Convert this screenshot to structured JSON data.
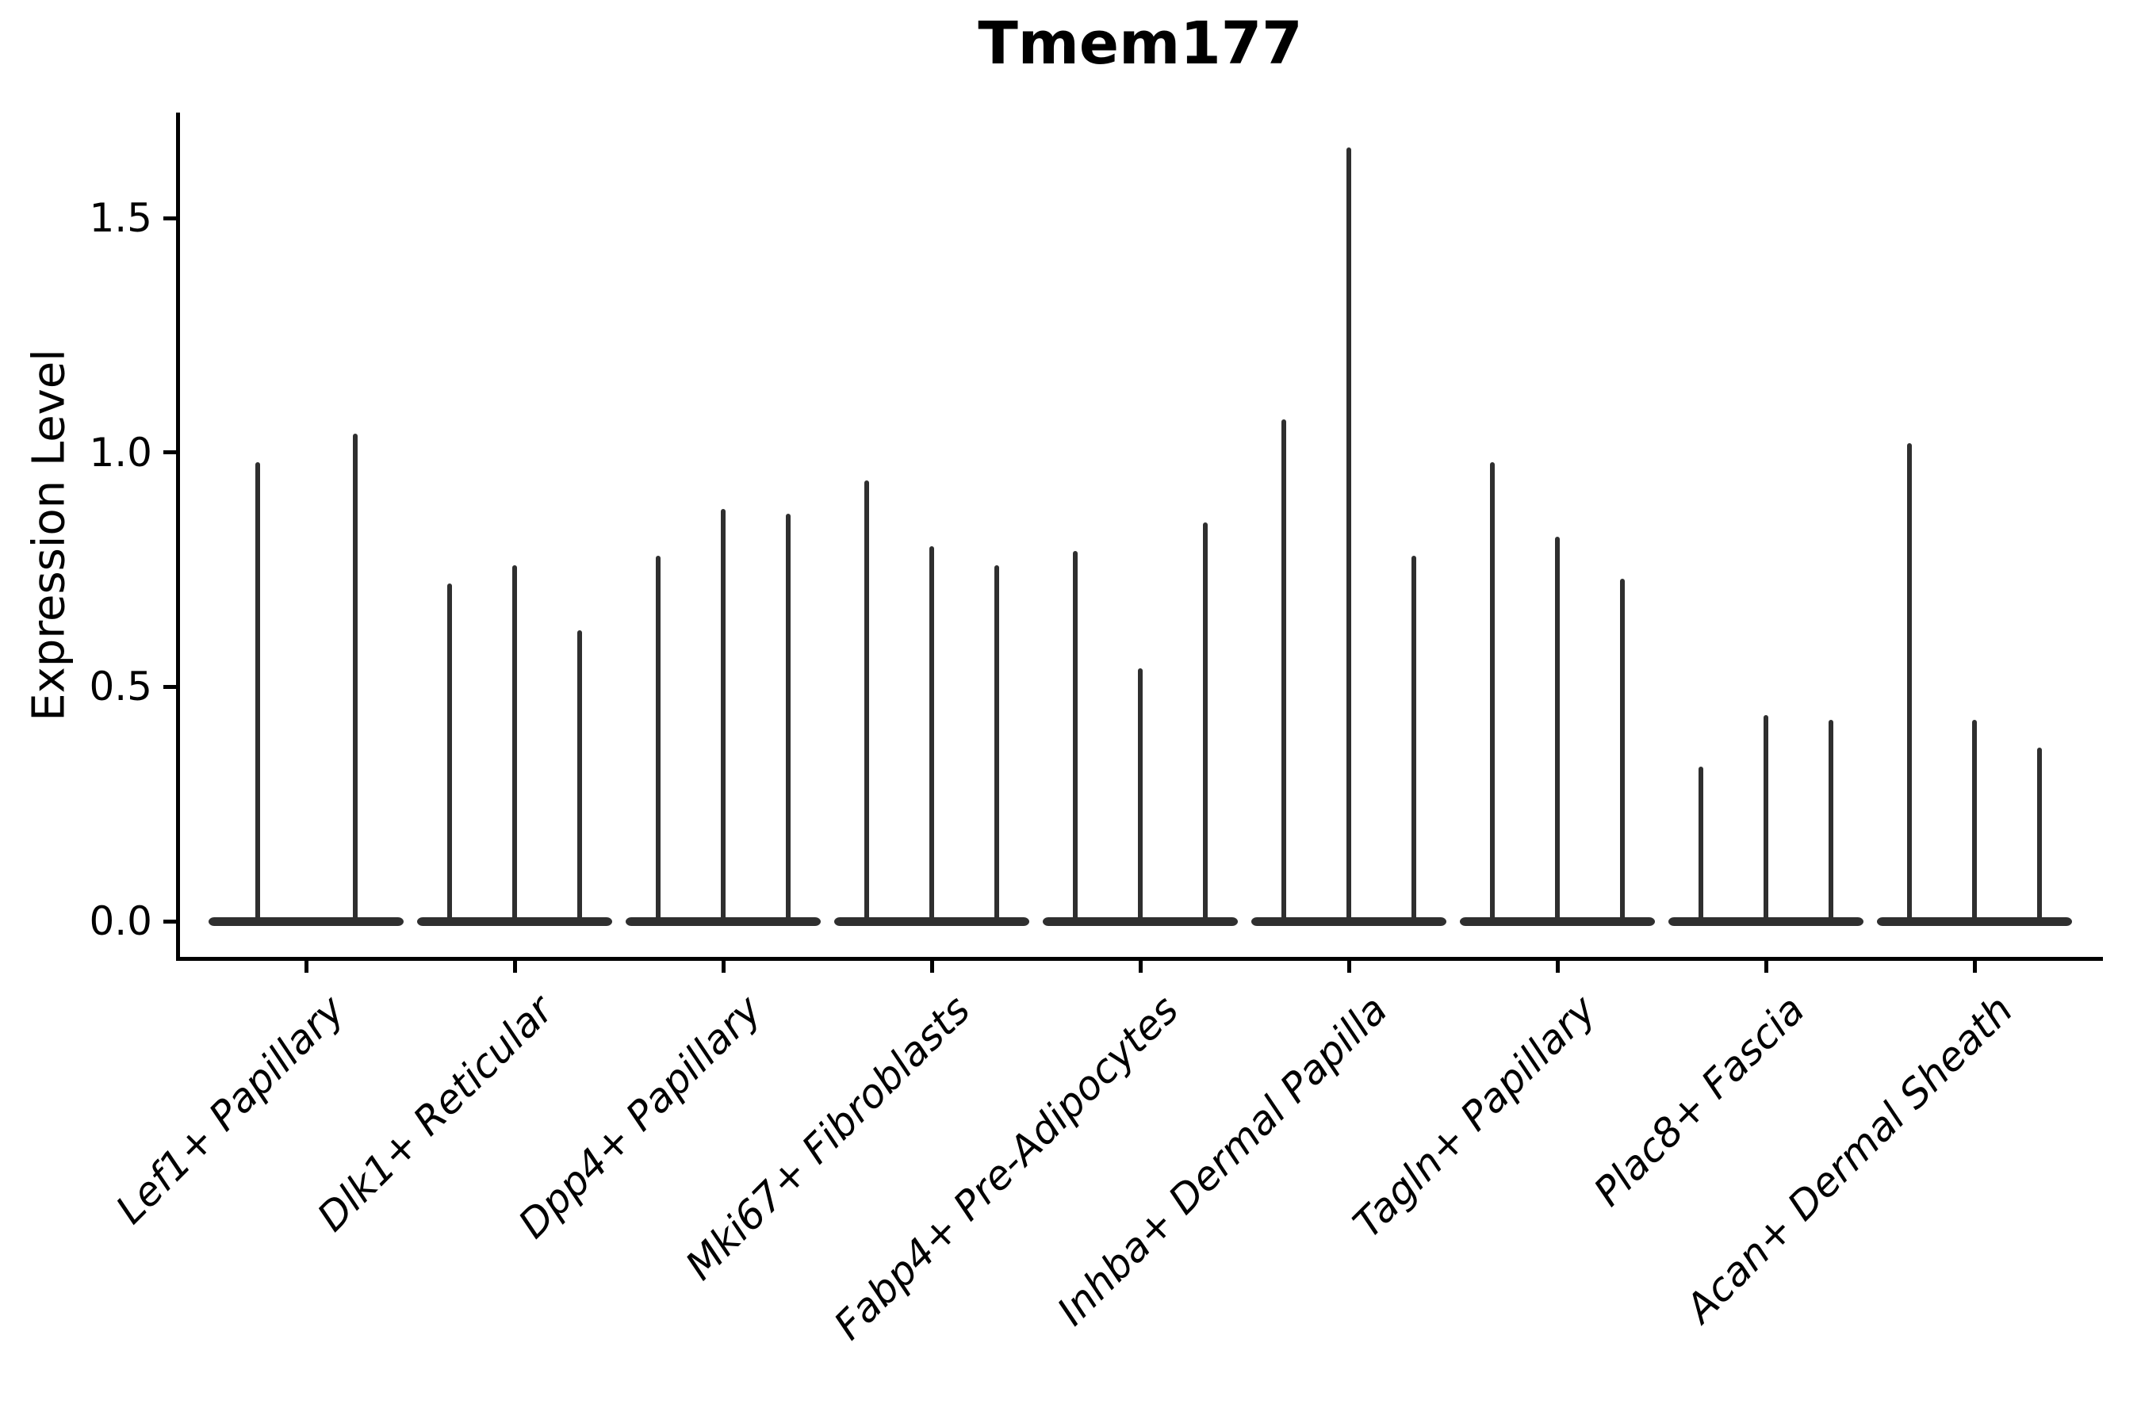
{
  "figure": {
    "title": "Tmem177",
    "ylabel": "Expression Level"
  },
  "chart_data": {
    "type": "violin",
    "title": "Tmem177",
    "xlabel": "",
    "ylabel": "Expression Level",
    "yticks": [
      0.0,
      0.5,
      1.0,
      1.5
    ],
    "ylim": [
      -0.08,
      1.72
    ],
    "grid": false,
    "legend": null,
    "violin_color": "#2f2f2f",
    "axis_color": "#000000",
    "note": "Each category shows thin collapsed violins: a flat body at expression 0 with a narrow tail rising to the maximum expression value.",
    "categories": [
      "Lef1+ Papillary",
      "Dlk1+ Reticular",
      "Dpp4+ Papillary",
      "Mki67+ Fibroblasts",
      "Fabp4+ Pre-Adipocytes",
      "Inhba+ Dermal Papilla",
      "Tagln+ Papillary",
      "Plac8+ Fascia",
      "Acan+ Dermal Sheath"
    ],
    "groups": [
      {
        "label": "Lef1+ Papillary",
        "violin_maxima": [
          0.98,
          1.04
        ]
      },
      {
        "label": "Dlk1+ Reticular",
        "violin_maxima": [
          0.72,
          0.76,
          0.62
        ]
      },
      {
        "label": "Dpp4+ Papillary",
        "violin_maxima": [
          0.78,
          0.88,
          0.87
        ]
      },
      {
        "label": "Mki67+ Fibroblasts",
        "violin_maxima": [
          0.94,
          0.8,
          0.76
        ]
      },
      {
        "label": "Fabp4+ Pre-Adipocytes",
        "violin_maxima": [
          0.79,
          0.54,
          0.85
        ]
      },
      {
        "label": "Inhba+ Dermal Papilla",
        "violin_maxima": [
          1.07,
          1.65,
          0.78
        ]
      },
      {
        "label": "Tagln+ Papillary",
        "violin_maxima": [
          0.98,
          0.82,
          0.73
        ]
      },
      {
        "label": "Plac8+ Fascia",
        "violin_maxima": [
          0.33,
          0.44,
          0.43
        ]
      },
      {
        "label": "Acan+ Dermal Sheath",
        "violin_maxima": [
          1.02,
          0.43,
          0.37
        ]
      }
    ]
  }
}
